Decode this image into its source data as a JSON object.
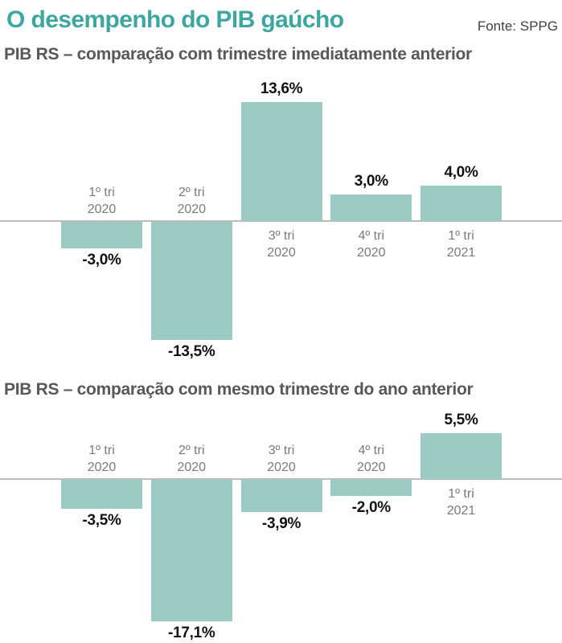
{
  "header": {
    "title": "O desempenho do PIB gaúcho",
    "source": "Fonte: SPPG"
  },
  "colors": {
    "accent_teal": "#3ea6a1",
    "bar_fill": "#9ccac5",
    "axis_line": "#bcbcbc",
    "subtitle_text": "#58585a",
    "category_text": "#7a7a7a",
    "value_text": "#121212"
  },
  "chart_data": [
    {
      "type": "bar",
      "title": "PIB RS – comparação com trimestre imediatamente anterior",
      "categories": [
        "1º tri\n2020",
        "2º tri\n2020",
        "3º tri\n2020",
        "4º tri\n2020",
        "1º tri\n2021"
      ],
      "values": [
        -3.0,
        -13.5,
        13.6,
        3.0,
        4.0
      ],
      "value_labels": [
        "-3,0%",
        "-13,5%",
        "13,6%",
        "3,0%",
        "4,0%"
      ],
      "ylabel": "",
      "xlabel": "",
      "ylim": [
        -16.5,
        16.5
      ],
      "grid": false,
      "legend": "none"
    },
    {
      "type": "bar",
      "title": "PIB RS – comparação com mesmo trimestre do ano anterior",
      "categories": [
        "1º tri\n2020",
        "2º tri\n2020",
        "3º tri\n2020",
        "4º tri\n2020",
        "1º tri\n2021"
      ],
      "values": [
        -3.5,
        -17.1,
        -3.9,
        -2.0,
        5.5
      ],
      "value_labels": [
        "-3,5%",
        "-17,1%",
        "-3,9%",
        "-2,0%",
        "5,5%"
      ],
      "ylabel": "",
      "xlabel": "",
      "ylim": [
        -19.8,
        9.3
      ],
      "grid": false,
      "legend": "none"
    }
  ]
}
